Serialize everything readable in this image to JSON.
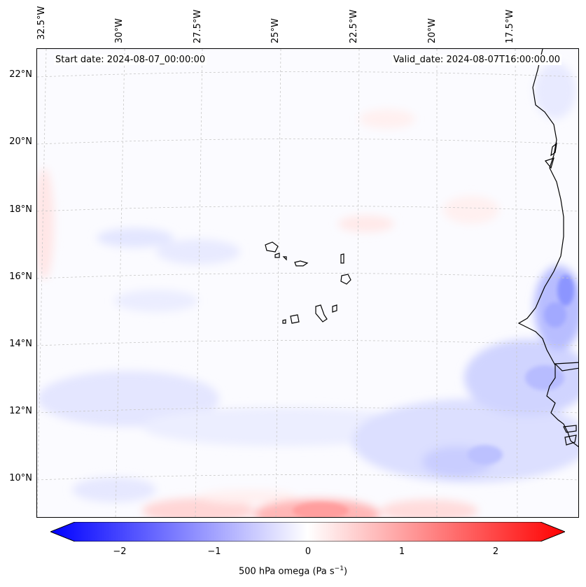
{
  "header": {
    "start_date": "Start date: 2024-08-07_00:00:00",
    "valid_date": "Valid_date: 2024-08-07T16:00:00.00"
  },
  "longitude_labels": [
    "32.5°W",
    "30°W",
    "27.5°W",
    "25°W",
    "22.5°W",
    "20°W",
    "17.5°W"
  ],
  "latitude_labels": [
    "22°N",
    "20°N",
    "18°N",
    "16°N",
    "14°N",
    "12°N",
    "10°N"
  ],
  "colorbar": {
    "label_prefix": "500 hPa omega (Pa s",
    "label_exponent": "−1",
    "label_suffix": ")",
    "ticks": [
      "−2",
      "−1",
      "0",
      "1",
      "2"
    ],
    "range": [
      -2.6,
      2.6
    ],
    "colormap": "bwr",
    "colors": {
      "min": "#0000ff",
      "mid": "#ffffff",
      "max": "#ff0000"
    }
  },
  "map": {
    "projection": "lambert-conformal",
    "field": "500 hPa omega",
    "coastline_color": "#000000",
    "gridline_color": "#c8c8c8"
  }
}
